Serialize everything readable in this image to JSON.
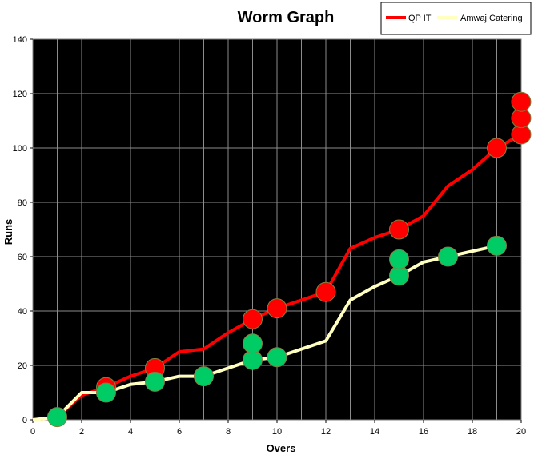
{
  "chart_data": {
    "type": "line",
    "title": "Worm Graph",
    "xlabel": "Overs",
    "ylabel": "Runs",
    "xlim": [
      0,
      20
    ],
    "ylim": [
      0,
      140
    ],
    "x_ticks": [
      0,
      2,
      4,
      6,
      8,
      10,
      12,
      14,
      16,
      18,
      20
    ],
    "y_ticks": [
      0,
      20,
      40,
      60,
      80,
      100,
      120,
      140
    ],
    "grid": true,
    "plot_background": "#000000",
    "grid_color": "#8c8c8c",
    "legend_position": "top-right",
    "series": [
      {
        "name": "QP IT",
        "color": "#ff0000",
        "x": [
          0,
          1,
          2,
          3,
          4,
          5,
          6,
          7,
          8,
          9,
          10,
          11,
          12,
          13,
          14,
          15,
          16,
          17,
          18,
          19,
          20
        ],
        "y": [
          0,
          1,
          9,
          12,
          16,
          19,
          25,
          26,
          32,
          37,
          41,
          44,
          47,
          63,
          67,
          70,
          75,
          86,
          92,
          100,
          105
        ],
        "wickets": [
          {
            "x": 3,
            "y": 12
          },
          {
            "x": 5,
            "y": 19
          },
          {
            "x": 9,
            "y": 37
          },
          {
            "x": 10,
            "y": 41
          },
          {
            "x": 12,
            "y": 47
          },
          {
            "x": 15,
            "y": 70
          },
          {
            "x": 19,
            "y": 100
          },
          {
            "x": 20,
            "y": 105
          },
          {
            "x": 20,
            "y": 111
          },
          {
            "x": 20,
            "y": 117
          }
        ]
      },
      {
        "name": "Amwaj Catering",
        "color": "#ffffc0",
        "x": [
          0,
          1,
          2,
          3,
          4,
          5,
          6,
          7,
          8,
          9,
          10,
          11,
          12,
          13,
          14,
          15,
          16,
          17,
          18,
          19
        ],
        "y": [
          0,
          1,
          10,
          10,
          13,
          14,
          16,
          16,
          19,
          22,
          23,
          26,
          29,
          44,
          49,
          53,
          58,
          60,
          62,
          64
        ],
        "wickets": [
          {
            "x": 1,
            "y": 1
          },
          {
            "x": 3,
            "y": 10
          },
          {
            "x": 5,
            "y": 14
          },
          {
            "x": 7,
            "y": 16
          },
          {
            "x": 9,
            "y": 22
          },
          {
            "x": 9,
            "y": 28
          },
          {
            "x": 10,
            "y": 23
          },
          {
            "x": 15,
            "y": 53
          },
          {
            "x": 15,
            "y": 59
          },
          {
            "x": 17,
            "y": 60
          },
          {
            "x": 19,
            "y": 64
          }
        ],
        "wicket_color": "#00cc66"
      }
    ]
  }
}
